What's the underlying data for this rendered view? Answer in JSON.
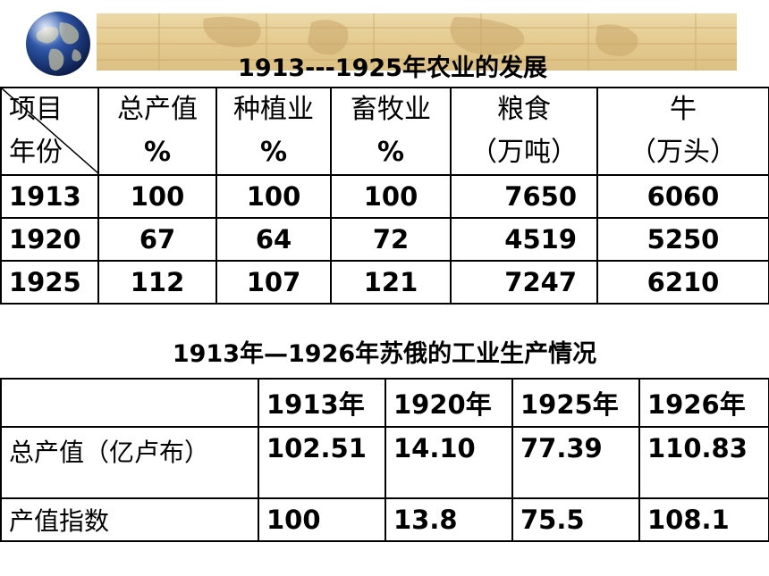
{
  "agriculture": {
    "title": "1913---1925年农业的发展",
    "header_top": [
      "项目",
      "总产值",
      "种植业",
      "畜牧业",
      "粮食",
      "牛"
    ],
    "header_bottom": [
      "年份",
      "%",
      "%",
      "%",
      "（万吨）",
      "（万头）"
    ],
    "rows": [
      [
        "1913",
        "100",
        "100",
        "100",
        "7650",
        "6060"
      ],
      [
        "1920",
        "67",
        "64",
        "72",
        "4519",
        "5250"
      ],
      [
        "1925",
        "112",
        "107",
        "121",
        "7247",
        "6210"
      ]
    ]
  },
  "industry": {
    "title": "1913年—1926年苏俄的工业生产情况",
    "years": [
      "1913年",
      "1920年",
      "1925年",
      "1926年"
    ],
    "rows": [
      {
        "label": "总产值（亿卢布）",
        "values": [
          "102.51",
          "14.10",
          "77.39",
          "110.83"
        ]
      },
      {
        "label": "产值指数",
        "values": [
          "100",
          "13.8",
          "75.5",
          "108.1"
        ]
      }
    ]
  },
  "colors": {
    "banner": "#e3c98d",
    "banner_lines": "#c9a866",
    "globe_ocean": "#1e3f8a",
    "globe_land": "#b7b7a0"
  },
  "icons": {
    "globe": "globe-icon",
    "banner": "world-map-banner"
  }
}
